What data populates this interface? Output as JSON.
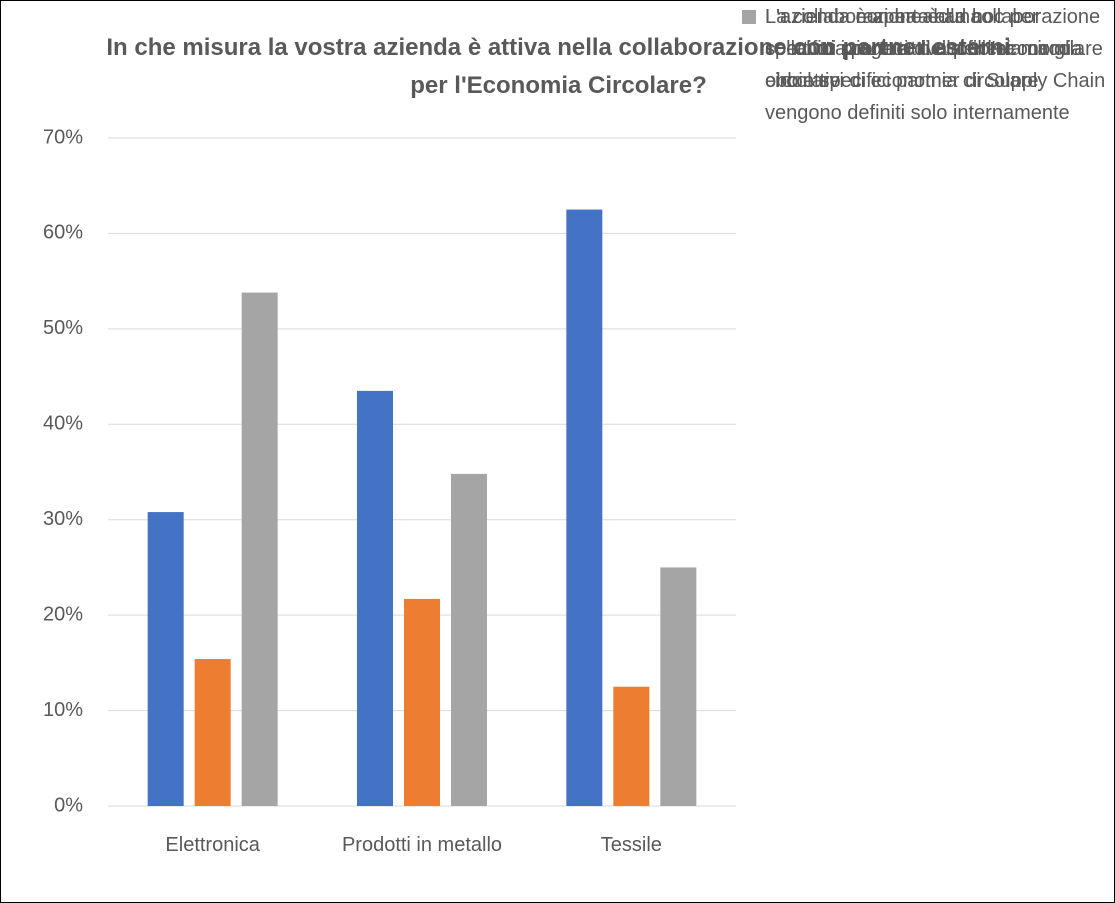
{
  "chart_data": {
    "type": "bar",
    "title": "In che misura la vostra azienda è attiva nella collaborazione con partner esterni per l'Economia Circolare?",
    "categories": [
      "Elettronica",
      "Prodotti in metallo",
      "Tessile"
    ],
    "series": [
      {
        "name": "La collaborazione è ad hoc per specifici progetti di economia circolare e con specifici partner di Supply Chain",
        "color": "#4472c4",
        "values": [
          30.8,
          43.5,
          62.5
        ]
      },
      {
        "name": "L'azienda è aperta alla collaborazione con tutti i partner della filiera ma gli obbiettivi di economia circolare vengono definiti solo internamente",
        "color": "#ed7d31",
        "values": [
          15.4,
          21.7,
          12.5
        ]
      },
      {
        "name": "L'azienda non ha alcuna collaborazione attiva per l'economia circolare",
        "color": "#a5a5a5",
        "values": [
          53.8,
          34.8,
          25
        ]
      }
    ],
    "ylim": [
      0,
      70
    ],
    "yticks": [
      {
        "value": 0,
        "label": "0%"
      },
      {
        "value": 10,
        "label": "10%"
      },
      {
        "value": 20,
        "label": "20%"
      },
      {
        "value": 30,
        "label": "30%"
      },
      {
        "value": 40,
        "label": "40%"
      },
      {
        "value": 50,
        "label": "50%"
      },
      {
        "value": 60,
        "label": "60%"
      },
      {
        "value": 70,
        "label": "70%"
      }
    ],
    "grid": true,
    "legend": "right"
  }
}
